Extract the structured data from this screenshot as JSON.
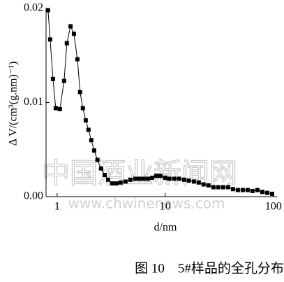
{
  "chart_data": {
    "type": "line",
    "x_label": "d/nm",
    "y_label": "Δ V/(cm³(g.nm)⁻¹)",
    "caption": "图 10　5#样品的全孔分布",
    "watermark": "中国酒业新闻网",
    "watermark_url": "www.chwinenews.com",
    "xscale": "log",
    "xlim": [
      0.79,
      108
    ],
    "ylim": [
      0,
      0.02
    ],
    "xticks": [
      1,
      10,
      100
    ],
    "yticks": [
      {
        "value": 0,
        "label": "0.00"
      },
      {
        "value": 0.01,
        "label": "0.01"
      },
      {
        "value": 0.02,
        "label": "0.02"
      }
    ],
    "color": "#000000",
    "marker": "square",
    "x": [
      0.824,
      0.862,
      0.915,
      0.971,
      1.06,
      1.16,
      1.23,
      1.33,
      1.43,
      1.54,
      1.63,
      1.73,
      1.84,
      1.95,
      2.07,
      2.2,
      2.36,
      2.55,
      2.75,
      2.96,
      3.23,
      3.53,
      3.86,
      4.29,
      4.76,
      5.28,
      5.77,
      6.31,
      6.9,
      7.55,
      8.25,
      9.03,
      10.0,
      10.9,
      12.1,
      13.4,
      14.9,
      16.5,
      18.4,
      20.4,
      22.6,
      25.1,
      27.9,
      30.9,
      34.3,
      38.1,
      42.3,
      46.9,
      52.1,
      57.8,
      64.1,
      71.2,
      79.0,
      87.7,
      97.3
    ],
    "values": [
      0.0198,
      0.0167,
      0.0125,
      0.0094,
      0.0093,
      0.0123,
      0.0163,
      0.0181,
      0.0173,
      0.0146,
      0.0111,
      0.0094,
      0.0081,
      0.0071,
      0.006,
      0.0049,
      0.0039,
      0.003,
      0.0023,
      0.0018,
      0.0014,
      0.0014,
      0.0015,
      0.0016,
      0.0018,
      0.0019,
      0.0019,
      0.0019,
      0.0019,
      0.002,
      0.0022,
      0.0022,
      0.002,
      0.0019,
      0.0019,
      0.0019,
      0.0018,
      0.0017,
      0.0016,
      0.0015,
      0.0013,
      0.0012,
      0.001,
      0.001,
      0.001,
      0.001,
      0.0008,
      0.0007,
      0.0007,
      0.0007,
      0.0006,
      0.0007,
      0.0005,
      0.0004,
      0.0003
    ]
  }
}
